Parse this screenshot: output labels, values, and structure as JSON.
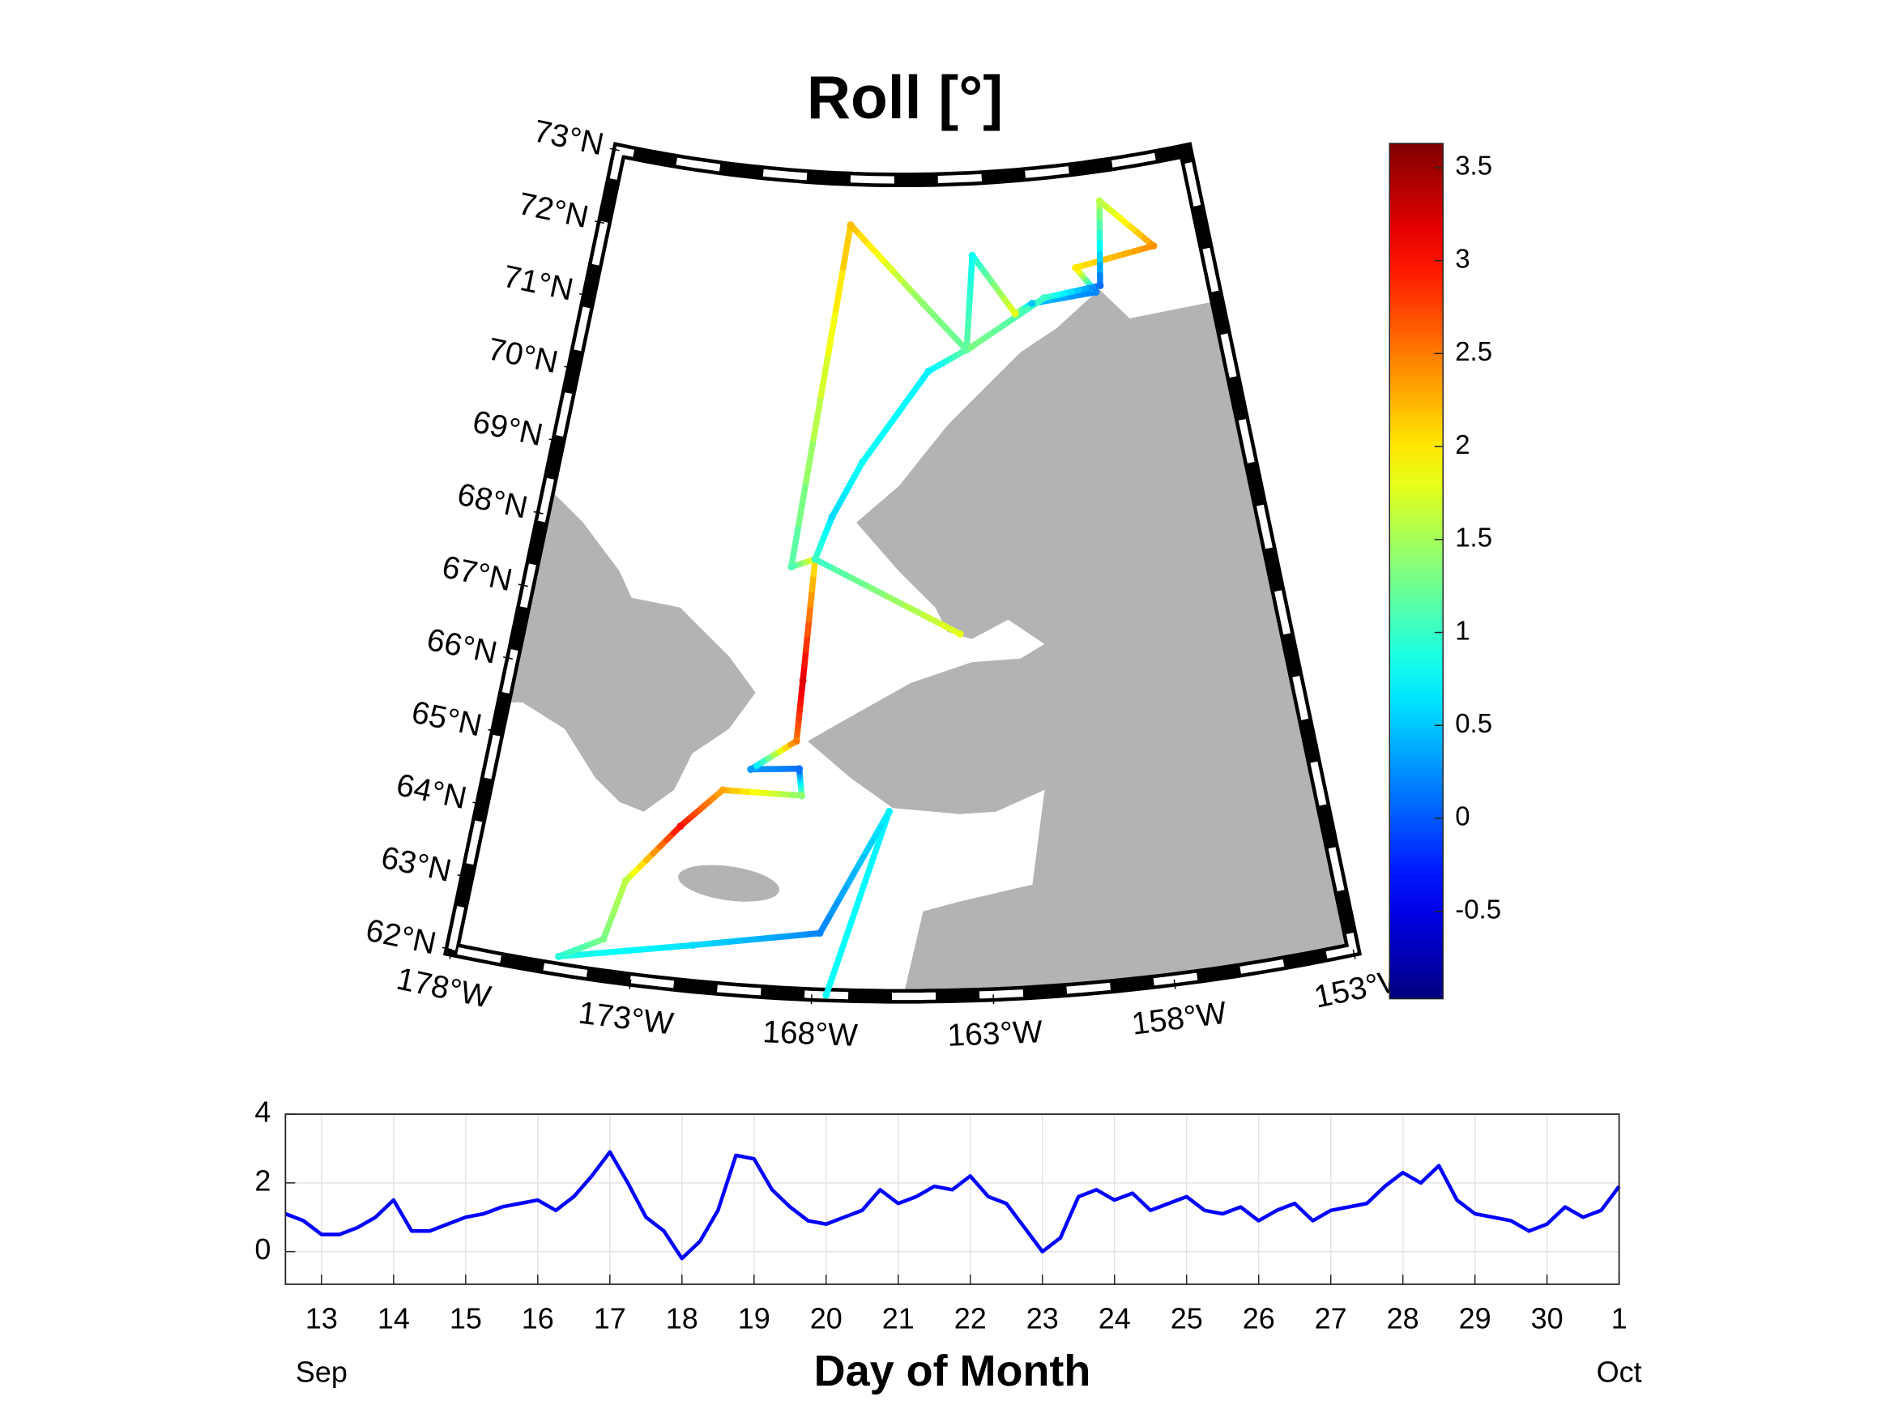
{
  "chart_data": [
    {
      "type": "map",
      "title": "Roll [°]",
      "xlim": [
        -178,
        -153
      ],
      "ylim": [
        62,
        73
      ],
      "xticks": [
        {
          "value": -178,
          "label": "178°W"
        },
        {
          "value": -173,
          "label": "173°W"
        },
        {
          "value": -168,
          "label": "168°W"
        },
        {
          "value": -163,
          "label": "163°W"
        },
        {
          "value": -158,
          "label": "158°W"
        },
        {
          "value": -153,
          "label": "153°W"
        }
      ],
      "yticks": [
        {
          "value": 62,
          "label": "62°N"
        },
        {
          "value": 63,
          "label": "63°N"
        },
        {
          "value": 64,
          "label": "64°N"
        },
        {
          "value": 65,
          "label": "65°N"
        },
        {
          "value": 66,
          "label": "66°N"
        },
        {
          "value": 67,
          "label": "67°N"
        },
        {
          "value": 68,
          "label": "68°N"
        },
        {
          "value": 69,
          "label": "69°N"
        },
        {
          "value": 70,
          "label": "70°N"
        },
        {
          "value": 71,
          "label": "71°N"
        },
        {
          "value": 72,
          "label": "72°N"
        },
        {
          "value": 73,
          "label": "73°N"
        }
      ],
      "colorbar": {
        "colormap": "jet",
        "clim": [
          -0.97,
          3.63
        ],
        "ticks": [
          -0.5,
          0,
          0.5,
          1,
          1.5,
          2,
          2.5,
          3,
          3.5
        ]
      },
      "track": {
        "lon": [
          -167.6,
          -165.9,
          -167.84,
          -171.4,
          -175.06,
          -173.9,
          -173.5,
          -172.1,
          -170.95,
          -168.55,
          -168.67,
          -170.15,
          -168.8,
          -168.7,
          -168.5,
          -169.3,
          -167.7,
          -164.67,
          -163.0,
          -162.6,
          -161.0,
          -160.3,
          -157.7,
          -158.4,
          -155.1,
          -157.05,
          -157.5,
          -159.8,
          -162.8,
          -164.5,
          -166.96,
          -167.98,
          -168.5,
          -163.6
        ],
        "lat": [
          62.0,
          64.49,
          62.83,
          62.55,
          62.17,
          62.49,
          63.31,
          64.13,
          64.67,
          64.67,
          65.03,
          64.98,
          65.4,
          66.22,
          67.86,
          67.74,
          72.38,
          71.33,
          70.69,
          71.96,
          71.14,
          71.26,
          71.32,
          71.68,
          71.82,
          72.53,
          71.4,
          71.32,
          70.73,
          70.42,
          69.19,
          68.44,
          67.86,
          66.87
        ],
        "values": [
          0.8,
          0.7,
          0.2,
          0.6,
          0.9,
          1.3,
          1.6,
          3.0,
          2.3,
          1.4,
          0.1,
          0.3,
          2.5,
          3.2,
          2.0,
          1.1,
          2.2,
          1.4,
          1.2,
          0.8,
          1.8,
          0.5,
          0.2,
          2.0,
          2.4,
          1.6,
          0.1,
          1.0,
          1.3,
          0.7,
          0.8,
          0.6,
          1.0,
          1.8
        ]
      }
    },
    {
      "type": "line",
      "x": [
        12.5,
        12.75,
        13,
        13.25,
        13.5,
        13.75,
        14,
        14.25,
        14.5,
        14.75,
        15,
        15.25,
        15.5,
        15.75,
        16,
        16.25,
        16.5,
        16.75,
        17,
        17.25,
        17.5,
        17.75,
        18,
        18.25,
        18.5,
        18.75,
        19,
        19.25,
        19.5,
        19.75,
        20,
        20.25,
        20.5,
        20.75,
        21,
        21.25,
        21.5,
        21.75,
        22,
        22.25,
        22.5,
        22.75,
        23,
        23.25,
        23.5,
        23.75,
        24,
        24.25,
        24.5,
        24.75,
        25,
        25.25,
        25.5,
        25.75,
        26,
        26.25,
        26.5,
        26.75,
        27,
        27.25,
        27.5,
        27.75,
        28,
        28.25,
        28.5,
        28.75,
        29,
        29.25,
        29.5,
        29.75,
        30,
        30.25,
        30.5,
        30.75,
        31
      ],
      "series": [
        {
          "color": "#0000ff",
          "values": [
            1.1,
            0.9,
            0.5,
            0.5,
            0.7,
            1.0,
            1.5,
            0.6,
            0.6,
            0.8,
            1.0,
            1.1,
            1.3,
            1.4,
            1.5,
            1.2,
            1.6,
            2.2,
            2.9,
            2.0,
            1.0,
            0.6,
            -0.2,
            0.3,
            1.2,
            2.8,
            2.7,
            1.8,
            1.3,
            0.9,
            0.8,
            1.0,
            1.2,
            1.8,
            1.4,
            1.6,
            1.9,
            1.8,
            2.2,
            1.6,
            1.4,
            0.7,
            0.0,
            0.4,
            1.6,
            1.8,
            1.5,
            1.7,
            1.2,
            1.4,
            1.6,
            1.2,
            1.1,
            1.3,
            0.9,
            1.2,
            1.4,
            0.9,
            1.2,
            1.3,
            1.4,
            1.9,
            2.3,
            2.0,
            2.5,
            1.5,
            1.1,
            1.0,
            0.9,
            0.6,
            0.8,
            1.3,
            1.0,
            1.2,
            1.9
          ]
        }
      ],
      "xlim": [
        12.5,
        31
      ],
      "ylim": [
        -0.95,
        4
      ],
      "xticks": [
        13,
        14,
        15,
        16,
        17,
        18,
        19,
        20,
        21,
        22,
        23,
        24,
        25,
        26,
        27,
        28,
        29,
        30,
        {
          "value": 31,
          "label": "1"
        }
      ],
      "yticks": [
        0,
        2,
        4
      ],
      "month_labels": [
        {
          "value": 13,
          "label": "Sep"
        },
        {
          "value": 31,
          "label": "Oct"
        }
      ],
      "xlabel": "Day of Month",
      "grid": true
    }
  ]
}
